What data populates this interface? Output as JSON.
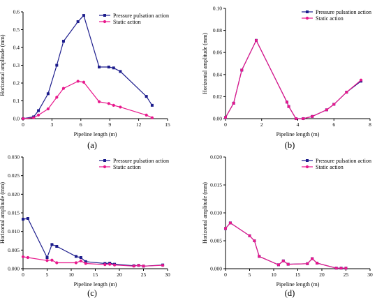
{
  "colors": {
    "pressure": "#1c1c8c",
    "static": "#e8188c"
  },
  "chart_data": [
    {
      "type": "line",
      "panel_label": "(a)",
      "xlabel": "Pipeline length (m)",
      "ylabel": "Horizontal amplitude (mm)",
      "xlim": [
        0,
        15
      ],
      "ylim": [
        0,
        0.6
      ],
      "xticks": [
        0,
        3,
        6,
        9,
        12,
        15
      ],
      "yticks": [
        0.0,
        0.1,
        0.2,
        0.3,
        0.4,
        0.5,
        0.6
      ],
      "xtick_labels": [
        "0",
        "3",
        "6",
        "9",
        "12",
        "15"
      ],
      "ytick_labels": [
        "0.0",
        "0.1",
        "0.2",
        "0.3",
        "0.4",
        "0.5",
        "0.6"
      ],
      "legend_position": "top-right",
      "series": [
        {
          "name": "Pressure pulsation action",
          "color_key": "pressure",
          "marker": "square",
          "x": [
            0,
            1.1,
            1.6,
            2.6,
            3.5,
            4.2,
            5.7,
            6.3,
            7.9,
            8.9,
            9.4,
            10.1,
            12.8,
            13.4
          ],
          "y": [
            0,
            0.01,
            0.045,
            0.14,
            0.3,
            0.435,
            0.545,
            0.58,
            0.29,
            0.29,
            0.285,
            0.265,
            0.125,
            0.075
          ]
        },
        {
          "name": "Static action",
          "color_key": "static",
          "marker": "circle",
          "x": [
            0,
            1.1,
            1.6,
            2.6,
            3.5,
            4.2,
            5.7,
            6.3,
            7.9,
            8.9,
            9.4,
            10.1,
            12.8,
            13.4
          ],
          "y": [
            0,
            0.005,
            0.02,
            0.055,
            0.12,
            0.17,
            0.21,
            0.205,
            0.095,
            0.085,
            0.075,
            0.065,
            0.02,
            0.005
          ]
        }
      ]
    },
    {
      "type": "line",
      "panel_label": "(b)",
      "xlabel": "Pipeline length (m)",
      "ylabel": "Horizontal amplitude (mm)",
      "xlim": [
        0,
        8
      ],
      "ylim": [
        0,
        0.1
      ],
      "xticks": [
        0,
        2,
        4,
        6,
        8
      ],
      "yticks": [
        0.0,
        0.02,
        0.04,
        0.06,
        0.08,
        0.1
      ],
      "xtick_labels": [
        "0",
        "2",
        "4",
        "6",
        "8"
      ],
      "ytick_labels": [
        "0.00",
        "0.02",
        "0.04",
        "0.06",
        "0.08",
        "0.10"
      ],
      "legend_position": "top-right",
      "series": [
        {
          "name": "Pressure pulsation action",
          "color_key": "pressure",
          "marker": "square",
          "x": [
            0,
            0.45,
            0.9,
            1.7,
            3.4,
            3.5,
            3.9,
            4.3,
            4.8,
            5.6,
            6.0,
            6.7,
            7.5
          ],
          "y": [
            0.001,
            0.014,
            0.044,
            0.071,
            0.015,
            0.011,
            0.0,
            0.0,
            0.002,
            0.008,
            0.013,
            0.024,
            0.034
          ]
        },
        {
          "name": "Static action",
          "color_key": "static",
          "marker": "circle",
          "x": [
            0,
            0.45,
            0.9,
            1.7,
            3.4,
            3.5,
            3.9,
            4.3,
            4.8,
            5.6,
            6.0,
            6.7,
            7.5
          ],
          "y": [
            0.001,
            0.014,
            0.044,
            0.071,
            0.015,
            0.011,
            0.0,
            0.0,
            0.002,
            0.008,
            0.013,
            0.024,
            0.035
          ]
        }
      ]
    },
    {
      "type": "line",
      "panel_label": "(c)",
      "xlabel": "Pipeline length (m)",
      "ylabel": "Horizontal amplitude (mm)",
      "xlim": [
        0,
        30
      ],
      "ylim": [
        0,
        0.03
      ],
      "xticks": [
        0,
        5,
        10,
        15,
        20,
        25,
        30
      ],
      "yticks": [
        0.0,
        0.005,
        0.01,
        0.015,
        0.02,
        0.025,
        0.03
      ],
      "xtick_labels": [
        "0",
        "5",
        "10",
        "15",
        "20",
        "25",
        "30"
      ],
      "ytick_labels": [
        "0.000",
        "0.005",
        "0.010",
        "0.015",
        "0.020",
        "0.025",
        "0.030"
      ],
      "legend_position": "top-right",
      "series": [
        {
          "name": "Pressure pulsation action",
          "color_key": "pressure",
          "marker": "square",
          "x": [
            0,
            1,
            5,
            6,
            7,
            11,
            12,
            13,
            17,
            18,
            19,
            23,
            24,
            25,
            29
          ],
          "y": [
            0.0133,
            0.0135,
            0.003,
            0.0065,
            0.006,
            0.0033,
            0.003,
            0.0019,
            0.0014,
            0.0015,
            0.0012,
            0.0008,
            0.0009,
            0.0007,
            0.001
          ]
        },
        {
          "name": "Static action",
          "color_key": "static",
          "marker": "circle",
          "x": [
            0,
            1,
            5,
            6,
            7,
            11,
            12,
            13,
            17,
            18,
            19,
            23,
            24,
            25,
            29
          ],
          "y": [
            0.0032,
            0.003,
            0.0022,
            0.0023,
            0.0016,
            0.0016,
            0.0021,
            0.0014,
            0.0011,
            0.0012,
            0.001,
            0.0007,
            0.0009,
            0.0007,
            0.0009
          ]
        }
      ]
    },
    {
      "type": "line",
      "panel_label": "(d)",
      "xlabel": "Pipeline length (m)",
      "ylabel": "Horizontal amplitude (mm)",
      "xlim": [
        0,
        30
      ],
      "ylim": [
        0,
        0.02
      ],
      "xticks": [
        0,
        5,
        10,
        15,
        20,
        25,
        30
      ],
      "yticks": [
        0.0,
        0.005,
        0.01,
        0.015,
        0.02
      ],
      "xtick_labels": [
        "0",
        "5",
        "10",
        "15",
        "20",
        "25",
        "30"
      ],
      "ytick_labels": [
        "0.000",
        "0.005",
        "0.010",
        "0.015",
        "0.020"
      ],
      "legend_position": "top-right",
      "series": [
        {
          "name": "Pressure pulsation action",
          "color_key": "pressure",
          "marker": "square",
          "x": [
            0,
            1,
            5,
            6,
            7,
            11,
            12,
            13,
            17,
            18,
            19,
            23,
            24,
            25
          ],
          "y": [
            0.0072,
            0.0082,
            0.0059,
            0.005,
            0.0022,
            0.0007,
            0.0014,
            0.0008,
            0.0009,
            0.0018,
            0.001,
            0.0001,
            0.0001,
            0.0001
          ]
        },
        {
          "name": "Static action",
          "color_key": "static",
          "marker": "circle",
          "x": [
            0,
            1,
            5,
            6,
            7,
            11,
            12,
            13,
            17,
            18,
            19,
            23,
            24,
            25
          ],
          "y": [
            0.0072,
            0.0082,
            0.0059,
            0.005,
            0.0022,
            0.0007,
            0.0014,
            0.0008,
            0.0009,
            0.0018,
            0.001,
            0.0001,
            0.0001,
            0.0001
          ]
        }
      ]
    }
  ]
}
